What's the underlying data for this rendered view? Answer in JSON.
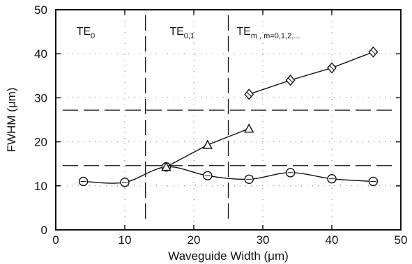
{
  "chart_data": {
    "type": "scatter",
    "xlabel": "Waveguide Width (μm)",
    "ylabel": "FWHM (μm)",
    "xlim": [
      0,
      50
    ],
    "ylim": [
      0,
      50
    ],
    "xticks": [
      0,
      10,
      20,
      30,
      40,
      50
    ],
    "yticks": [
      0,
      10,
      20,
      30,
      40,
      50
    ],
    "grid": "dotted",
    "series": [
      {
        "marker": "circle",
        "line": "smooth",
        "x": [
          4,
          10,
          16,
          22,
          28,
          34,
          40,
          46
        ],
        "y": [
          11,
          10.8,
          14.3,
          12.3,
          11.5,
          13,
          11.6,
          11
        ]
      },
      {
        "marker": "triangle",
        "line": "straight",
        "x": [
          16,
          22,
          28
        ],
        "y": [
          14.3,
          19.3,
          23
        ]
      },
      {
        "marker": "diamond",
        "line": "straight",
        "x": [
          28,
          34,
          40,
          46
        ],
        "y": [
          30.8,
          34,
          36.8,
          40.4
        ]
      }
    ],
    "reference_lines": {
      "horizontal_dashed": [
        27.2,
        14.6
      ],
      "vertical_dashed": [
        13,
        25
      ]
    },
    "region_labels": [
      {
        "base": "TE",
        "sub": "0",
        "extra": ""
      },
      {
        "base": "TE",
        "sub": "0,1",
        "extra": ""
      },
      {
        "base": "TE",
        "sub": "m",
        "extra": ", m=0,1,2,..."
      }
    ]
  }
}
